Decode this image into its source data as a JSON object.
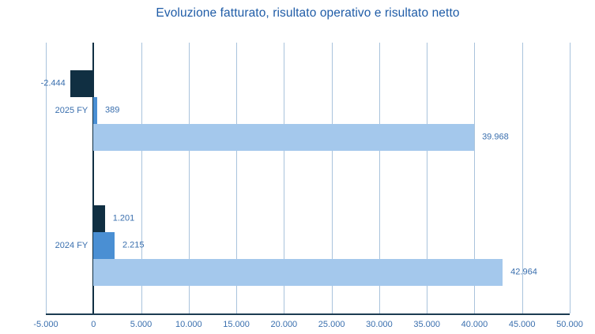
{
  "chart_data": {
    "type": "bar",
    "orientation": "horizontal",
    "title": "Evoluzione fatturato, risultato operativo e risultato netto",
    "categories": [
      "2025 FY",
      "2024 FY"
    ],
    "series": [
      {
        "name": "risultato netto",
        "color": "#102f42",
        "values": [
          -2444,
          1201
        ],
        "value_labels": [
          "-2.444",
          "1.201"
        ]
      },
      {
        "name": "risultato operativo",
        "color": "#4a8fd3",
        "values": [
          389,
          2215
        ],
        "value_labels": [
          "389",
          "2.215"
        ]
      },
      {
        "name": "fatturato",
        "color": "#a4c8ec",
        "values": [
          39968,
          42964
        ],
        "value_labels": [
          "39.968",
          "42.964"
        ]
      }
    ],
    "xlim": [
      -5000,
      50000
    ],
    "x_ticks": [
      -5000,
      0,
      5000,
      10000,
      15000,
      20000,
      25000,
      30000,
      35000,
      40000,
      45000,
      50000
    ],
    "x_tick_labels": [
      "-5.000",
      "0",
      "5.000",
      "10.000",
      "15.000",
      "20.000",
      "25.000",
      "30.000",
      "35.000",
      "40.000",
      "45.000",
      "50.000"
    ],
    "grid": "vertical-only",
    "legend": "none",
    "colors": {
      "bar_net_result": "#102f42",
      "bar_operating_result": "#4a8fd3",
      "bar_revenue": "#a4c8ec",
      "gridline": "#a9c3dc",
      "zero_line": "#102f42",
      "axis_line": "#1c3c52",
      "label_text": "#3a6fae",
      "title_text": "#1f5ca7",
      "background": "#ffffff"
    }
  }
}
